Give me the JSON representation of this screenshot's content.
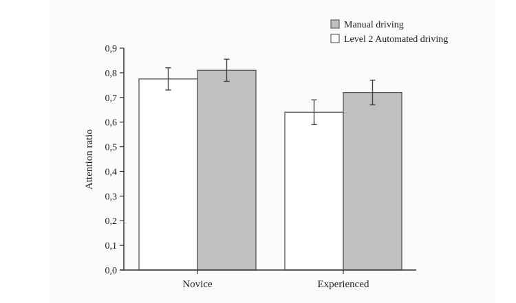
{
  "chart_data": {
    "type": "bar",
    "title": "",
    "xlabel": "",
    "ylabel": "Attention ratio",
    "ylim": [
      0,
      0.9
    ],
    "yticks": [
      "0,0",
      "0,1",
      "0,2",
      "0,3",
      "0,4",
      "0,5",
      "0,6",
      "0,7",
      "0,8",
      "0,9"
    ],
    "categories": [
      "Novice",
      "Experienced"
    ],
    "series": [
      {
        "name": "Level 2 Automated driving",
        "color": "#ffffff",
        "values": [
          0.775,
          0.64
        ],
        "errors": [
          0.045,
          0.05
        ]
      },
      {
        "name": "Manual driving",
        "color": "#c0c0c0",
        "values": [
          0.81,
          0.72
        ],
        "errors": [
          0.045,
          0.05
        ]
      }
    ],
    "legend": {
      "placement": "top-right",
      "entries": [
        "Manual driving",
        "Level 2 Automated driving"
      ]
    },
    "grid": false
  }
}
